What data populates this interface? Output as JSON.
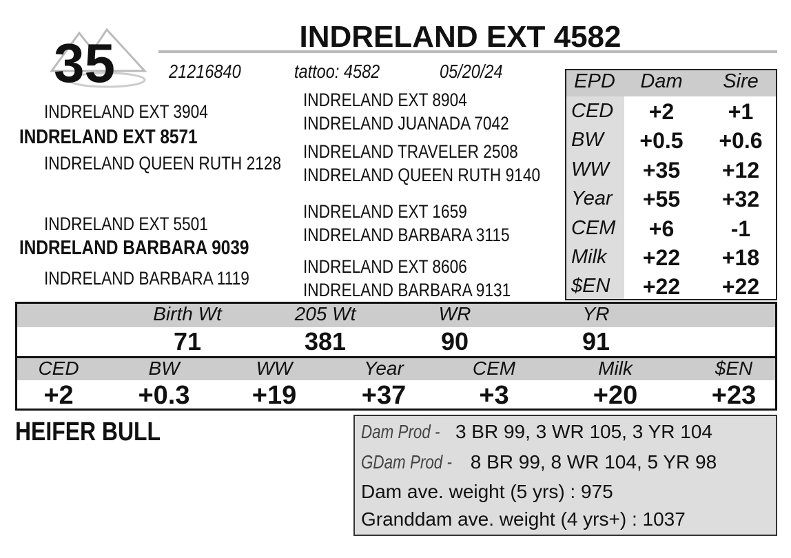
{
  "lot": "35",
  "name": "INDRELAND EXT 4582",
  "registration": "21216840",
  "tattoo": "tattoo: 4582",
  "birth_date": "05/20/24",
  "pedigree": {
    "sire_sire": "INDRELAND EXT 3904",
    "sire": "INDRELAND EXT 8571",
    "sire_dam": "INDRELAND QUEEN RUTH 2128",
    "dam_sire": "INDRELAND EXT 5501",
    "dam": "INDRELAND BARBARA 9039",
    "dam_dam": "INDRELAND BARBARA 1119",
    "great": [
      "INDRELAND EXT 8904",
      "INDRELAND JUANADA 7042",
      "INDRELAND TRAVELER 2508",
      "INDRELAND QUEEN RUTH 9140",
      "INDRELAND EXT 1659",
      "INDRELAND BARBARA 3115",
      "INDRELAND EXT 8606",
      "INDRELAND BARBARA 9131"
    ]
  },
  "parent_epds": {
    "headers": [
      "EPD",
      "Dam",
      "Sire"
    ],
    "rows": [
      [
        "CED",
        "+2",
        "+1"
      ],
      [
        "BW",
        "+0.5",
        "+0.6"
      ],
      [
        "WW",
        "+35",
        "+12"
      ],
      [
        "Year",
        "+55",
        "+32"
      ],
      [
        "CEM",
        "+6",
        "-1"
      ],
      [
        "Milk",
        "+22",
        "+18"
      ],
      [
        "$EN",
        "+22",
        "+22"
      ]
    ]
  },
  "weights": {
    "headers": [
      "Birth Wt",
      "205 Wt",
      "WR",
      "YR"
    ],
    "values": [
      "71",
      "381",
      "90",
      "91"
    ]
  },
  "epds": {
    "headers": [
      "CED",
      "BW",
      "WW",
      "Year",
      "CEM",
      "Milk",
      "$EN"
    ],
    "values": [
      "+2",
      "+0.3",
      "+19",
      "+37",
      "+3",
      "+20",
      "+23"
    ]
  },
  "category": "HEIFER BULL",
  "notes": [
    {
      "label": "Dam Prod -",
      "text": "3 BR 99, 3 WR 105, 3 YR 104"
    },
    {
      "label": "GDam Prod -",
      "text": "8 BR 99, 8 WR 104, 5 YR 98"
    },
    {
      "text": "Dam ave. weight (5 yrs) : 975"
    },
    {
      "text": "Granddam ave. weight (4 yrs+) : 1037"
    }
  ]
}
